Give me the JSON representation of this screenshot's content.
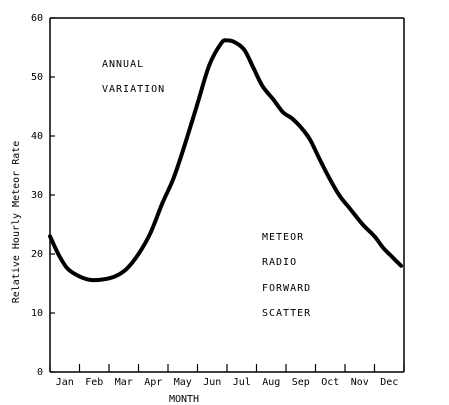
{
  "chart_data": {
    "type": "line",
    "xlabel": "MONTH",
    "ylabel": "Relative Hourly Meteor Rate",
    "ylim": [
      0,
      60
    ],
    "yticks": [
      "0",
      "10",
      "20",
      "30",
      "40",
      "50",
      "60"
    ],
    "categories": [
      "Jan",
      "Feb",
      "Mar",
      "Apr",
      "May",
      "Jun",
      "Jul",
      "Aug",
      "Sep",
      "Oct",
      "Nov",
      "Dec"
    ],
    "x": [
      0.0,
      0.3,
      0.6,
      1.0,
      1.4,
      1.8,
      2.2,
      2.6,
      3.0,
      3.4,
      3.8,
      4.2,
      4.6,
      5.0,
      5.4,
      5.8,
      6.0,
      6.3,
      6.6,
      6.9,
      7.2,
      7.6,
      7.9,
      8.2,
      8.5,
      8.8,
      9.1,
      9.4,
      9.8,
      10.2,
      10.6,
      11.0,
      11.3,
      11.6,
      11.9
    ],
    "y": [
      23,
      19.8,
      17.5,
      16.2,
      15.6,
      15.7,
      16.2,
      17.5,
      20,
      23.5,
      28.5,
      33,
      39,
      45.5,
      52,
      55.7,
      56.2,
      55.8,
      54.5,
      51.5,
      48.5,
      46,
      44,
      43,
      41.5,
      39.5,
      36.5,
      33.5,
      30,
      27.5,
      25,
      23,
      21,
      19.5,
      18
    ],
    "grid": false,
    "annotations": {
      "top_left": [
        "ANNUAL",
        "VARIATION"
      ],
      "lower_right": [
        "METEOR",
        "RADIO",
        "FORWARD",
        "SCATTER"
      ]
    }
  }
}
